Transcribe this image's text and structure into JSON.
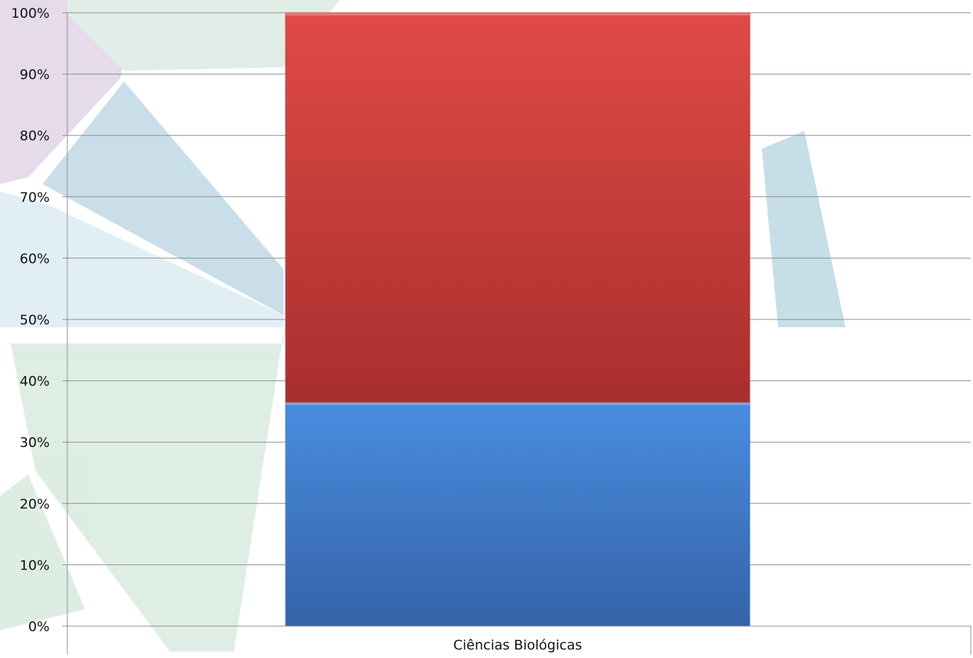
{
  "chart_data": {
    "type": "bar",
    "stacked": true,
    "percent": true,
    "categories": [
      "Ciências Biológicas"
    ],
    "series": [
      {
        "values": [
          36.5
        ],
        "color": "#3d7fd1"
      },
      {
        "values": [
          63.5
        ],
        "color": "#c83a3a"
      }
    ],
    "yticks": [
      "0%",
      "10%",
      "20%",
      "30%",
      "40%",
      "50%",
      "60%",
      "70%",
      "80%",
      "90%",
      "100%"
    ],
    "ylim": [
      0,
      100
    ],
    "grid": true,
    "legend": "none"
  }
}
